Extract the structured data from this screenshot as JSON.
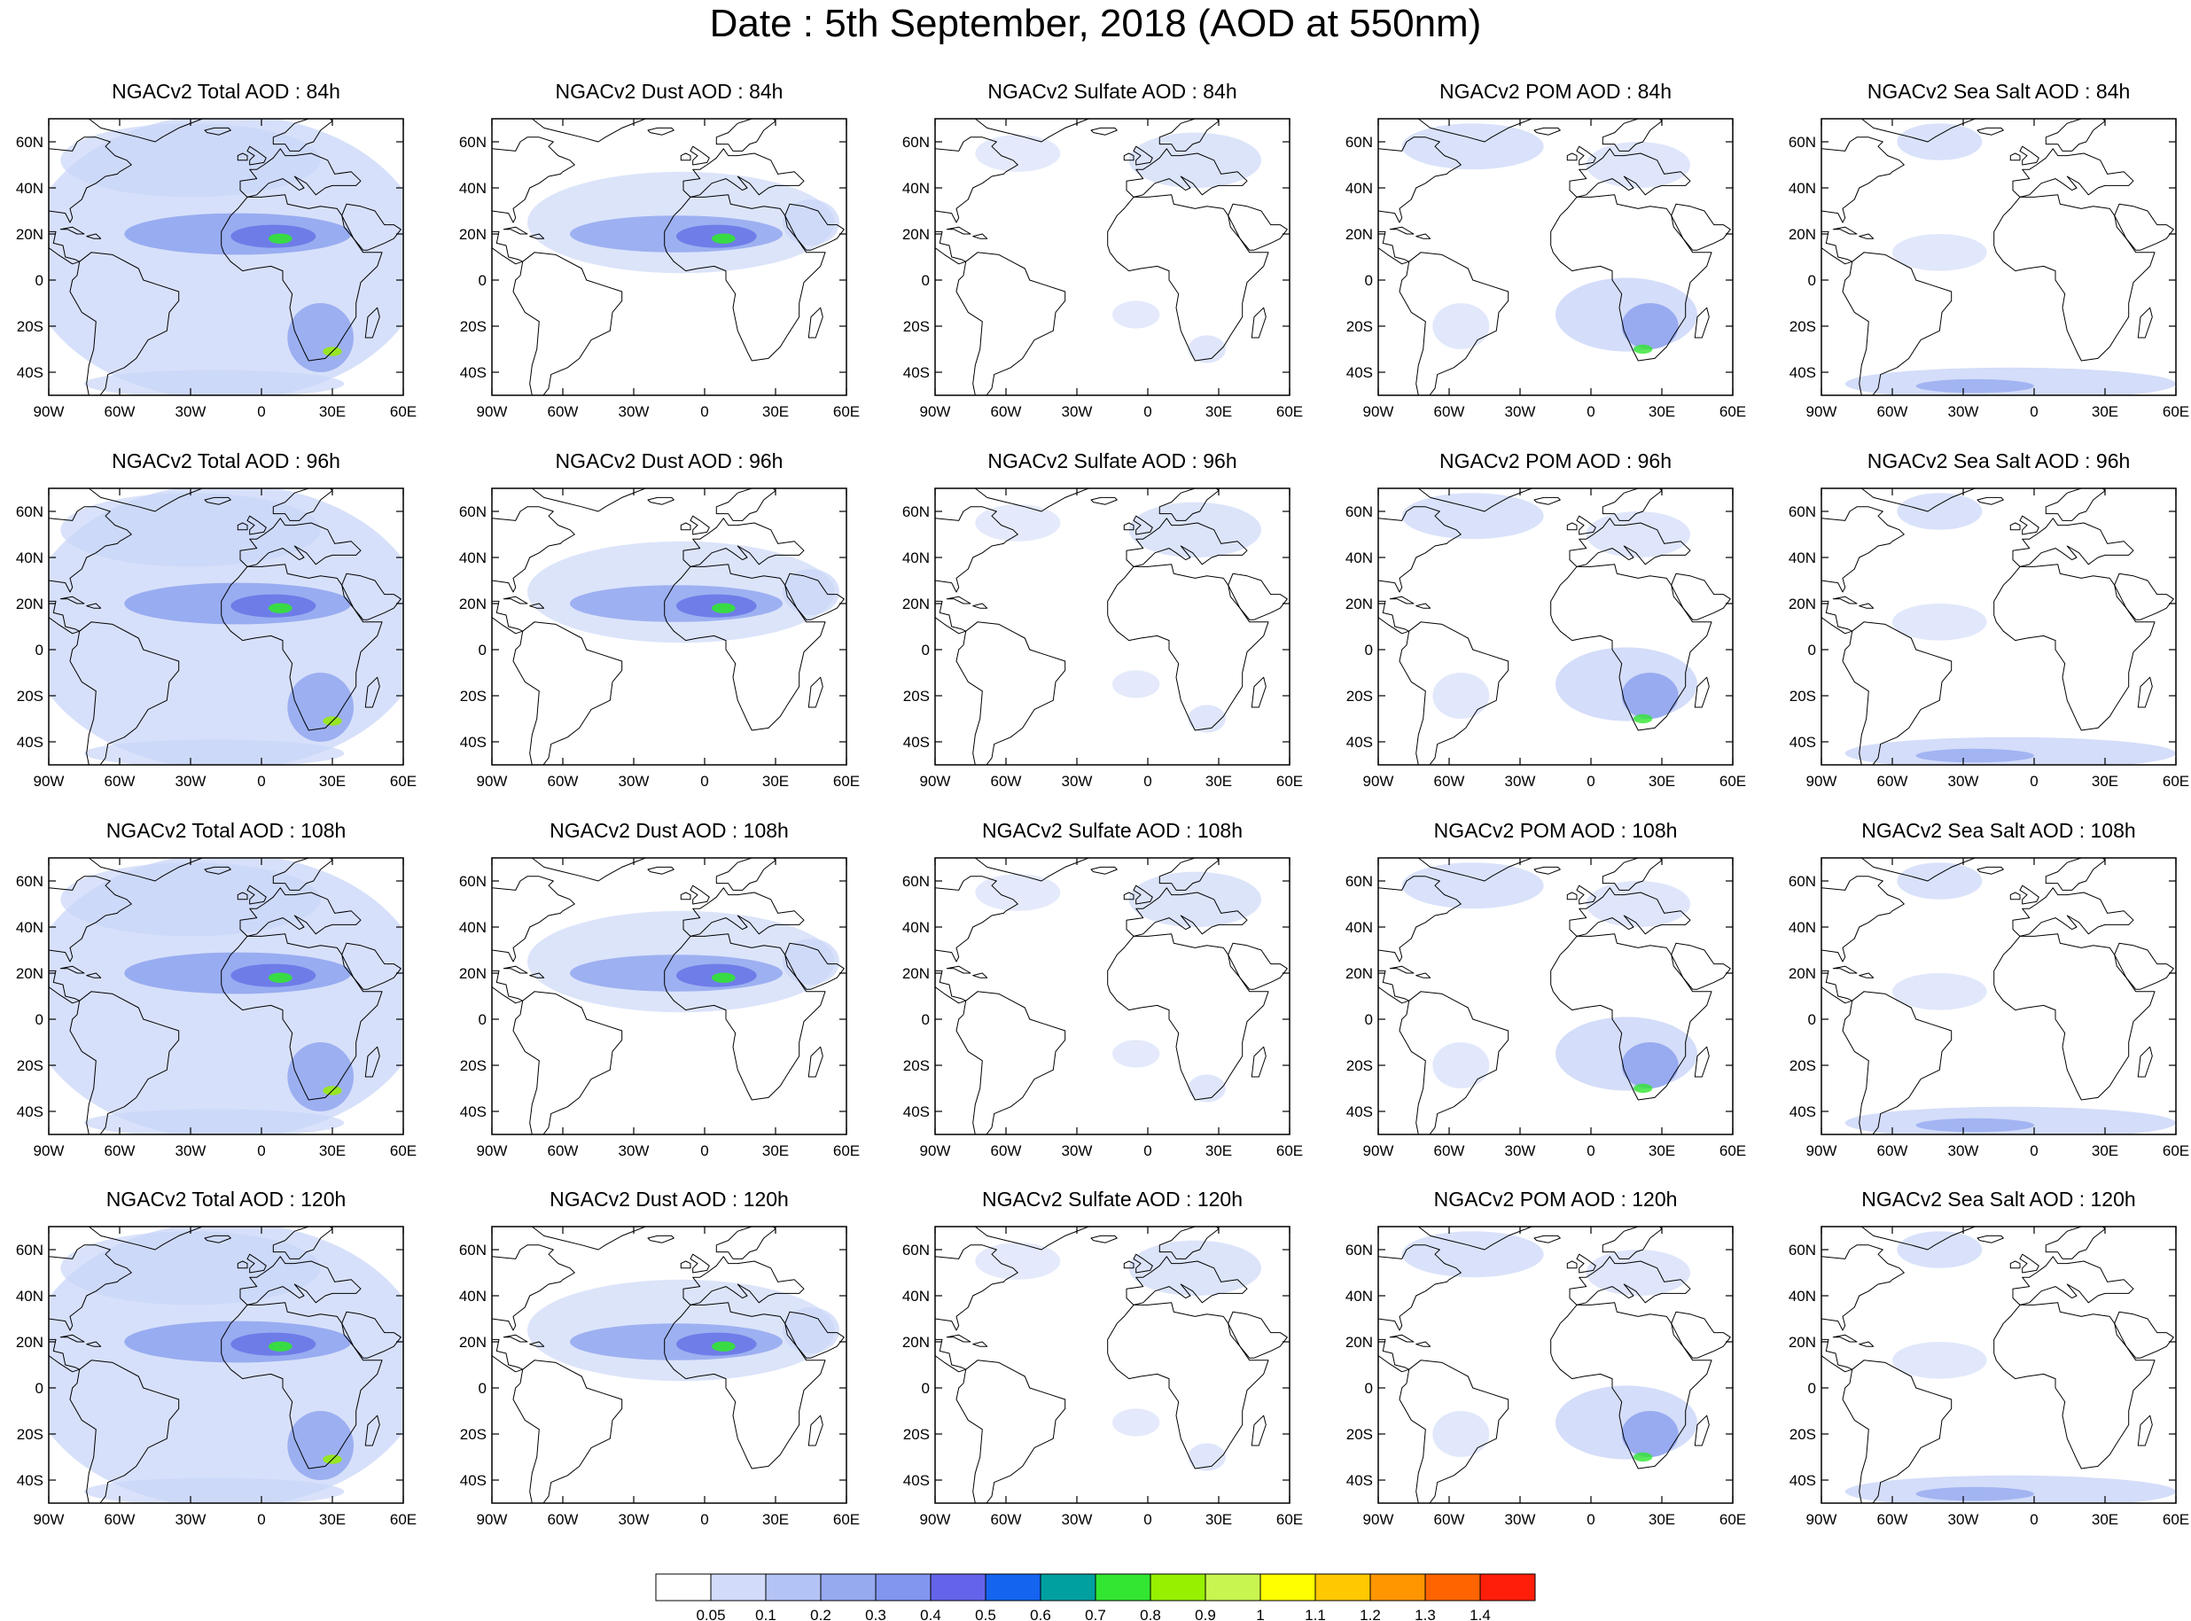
{
  "title": "Date : 5th September, 2018 (AOD at 550nm)",
  "panel_titles": [
    [
      "NGACv2 Total AOD : 84h",
      "NGACv2 Dust AOD : 84h",
      "NGACv2 Sulfate AOD : 84h",
      "NGACv2 POM AOD : 84h",
      "NGACv2 Sea Salt AOD : 84h"
    ],
    [
      "NGACv2 Total AOD : 96h",
      "NGACv2 Dust AOD : 96h",
      "NGACv2 Sulfate AOD : 96h",
      "NGACv2 POM AOD : 96h",
      "NGACv2 Sea Salt AOD : 96h"
    ],
    [
      "NGACv2 Total AOD : 108h",
      "NGACv2 Dust AOD : 108h",
      "NGACv2 Sulfate AOD : 108h",
      "NGACv2 POM AOD : 108h",
      "NGACv2 Sea Salt AOD : 108h"
    ],
    [
      "NGACv2 Total AOD : 120h",
      "NGACv2 Dust AOD : 120h",
      "NGACv2 Sulfate AOD : 120h",
      "NGACv2 POM AOD : 120h",
      "NGACv2 Sea Salt  AOD : 120h"
    ]
  ],
  "map_extent": {
    "lon": [
      -90,
      60
    ],
    "lat": [
      -50,
      70
    ]
  },
  "lat_ticks": [
    {
      "value": 60,
      "label": "60N"
    },
    {
      "value": 40,
      "label": "40N"
    },
    {
      "value": 20,
      "label": "20N"
    },
    {
      "value": 0,
      "label": "0"
    },
    {
      "value": -20,
      "label": "20S"
    },
    {
      "value": -40,
      "label": "40S"
    }
  ],
  "lon_ticks": [
    {
      "value": -90,
      "label": "90W"
    },
    {
      "value": -60,
      "label": "60W"
    },
    {
      "value": -30,
      "label": "30W"
    },
    {
      "value": 0,
      "label": "0"
    },
    {
      "value": 30,
      "label": "30E"
    },
    {
      "value": 60,
      "label": "60E"
    }
  ],
  "colorbar": {
    "labels": [
      "0.05",
      "0.1",
      "0.2",
      "0.3",
      "0.4",
      "0.5",
      "0.6",
      "0.7",
      "0.8",
      "0.9",
      "1",
      "1.1",
      "1.2",
      "1.3",
      "1.4"
    ],
    "colors": [
      "#ffffff",
      "#d2dcfa",
      "#b4c3f5",
      "#96aaf0",
      "#8296f0",
      "#6464eb",
      "#1464f0",
      "#00a0a0",
      "#32e632",
      "#96f000",
      "#c8f550",
      "#ffff00",
      "#ffc800",
      "#ff9600",
      "#ff6400",
      "#ff1e0a"
    ]
  },
  "style": {
    "field_light": "#c9d5f8",
    "field_mid": "#8da2ef",
    "field_strong": "#6470e6",
    "coast": "#000000"
  }
}
